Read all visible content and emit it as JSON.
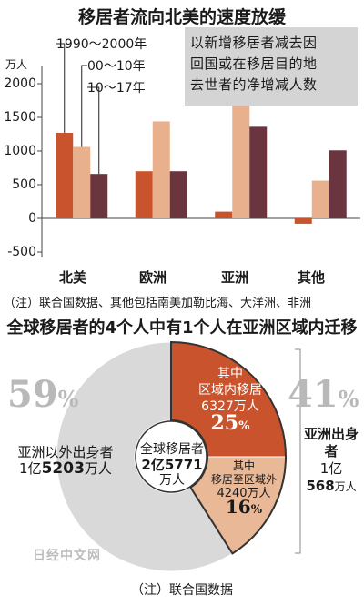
{
  "chart_data": [
    {
      "type": "bar",
      "title": "移居者流向北美的速度放缓",
      "ylabel": "万人",
      "yticks": [
        "2000",
        "1500",
        "1000",
        "500",
        "0",
        "-500"
      ],
      "ylim": [
        -500,
        2000
      ],
      "categories": [
        "北美",
        "欧洲",
        "亚洲",
        "其他"
      ],
      "series": [
        {
          "name": "1990～2000年",
          "color": "#c9532c",
          "values": [
            1270,
            700,
            100,
            -80
          ]
        },
        {
          "name": "00～10年",
          "color": "#e8b08c",
          "values": [
            1060,
            1440,
            1670,
            560
          ]
        },
        {
          "name": "10～17年",
          "color": "#6b3540",
          "values": [
            660,
            700,
            1360,
            1010
          ]
        }
      ],
      "annotation_lines": [
        "以新增移居者减去因",
        "回国或在移居目的地",
        "去世者的净增减人数"
      ],
      "note": "（注）联合国数据、其他包括南美加勒比海、大洋洲、非洲"
    },
    {
      "type": "pie",
      "title": "全球移居者的4个人中有1个人在亚洲区域内迁移",
      "center_label": [
        "全球移居者",
        "2亿5771",
        "万人"
      ],
      "outer_slices": [
        {
          "label": "亚洲以外出身者",
          "value_text": [
            "1亿",
            "5203",
            "万人"
          ],
          "percent": 59,
          "color": "#d9d9d9"
        },
        {
          "label": "亚洲出身者",
          "value_text": [
            "1亿",
            "568",
            "万人"
          ],
          "percent": 41
        }
      ],
      "inner_slices": [
        {
          "label": [
            "其中",
            "区域内移居",
            "6327万人"
          ],
          "percent": 25,
          "color": "#c9532c"
        },
        {
          "label": [
            "其中",
            "移居至区域外",
            "4240万人"
          ],
          "percent": 16,
          "color": "#e9b897"
        }
      ],
      "percent_sign": "%",
      "note": "（注）联合国数据"
    }
  ],
  "watermark": "日经中文网"
}
